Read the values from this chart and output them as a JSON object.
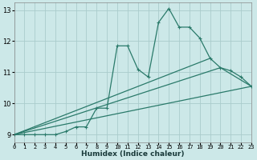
{
  "xlabel": "Humidex (Indice chaleur)",
  "bg_color": "#cce8e8",
  "grid_color": "#aacccc",
  "line_color": "#2a7a6a",
  "xlim": [
    0,
    23
  ],
  "ylim": [
    8.75,
    13.25
  ],
  "xticks": [
    0,
    1,
    2,
    3,
    4,
    5,
    6,
    7,
    8,
    9,
    10,
    11,
    12,
    13,
    14,
    15,
    16,
    17,
    18,
    19,
    20,
    21,
    22,
    23
  ],
  "yticks": [
    9,
    10,
    11,
    12,
    13
  ],
  "main_line": {
    "x": [
      0,
      1,
      2,
      3,
      4,
      5,
      6,
      7,
      8,
      9,
      10,
      11,
      12,
      13,
      14,
      15,
      16,
      17,
      18,
      19,
      20,
      21,
      22,
      23
    ],
    "y": [
      9.0,
      9.0,
      9.0,
      9.0,
      9.0,
      9.1,
      9.25,
      9.25,
      9.85,
      9.85,
      11.85,
      11.85,
      11.1,
      10.85,
      12.6,
      13.05,
      12.45,
      12.45,
      12.1,
      11.45,
      11.15,
      11.05,
      10.85,
      10.55
    ]
  },
  "straight_lines": [
    {
      "x": [
        0,
        19
      ],
      "y": [
        9.0,
        11.45
      ]
    },
    {
      "x": [
        0,
        20,
        23
      ],
      "y": [
        9.0,
        11.15,
        10.55
      ]
    },
    {
      "x": [
        0,
        23
      ],
      "y": [
        9.0,
        10.55
      ]
    }
  ]
}
